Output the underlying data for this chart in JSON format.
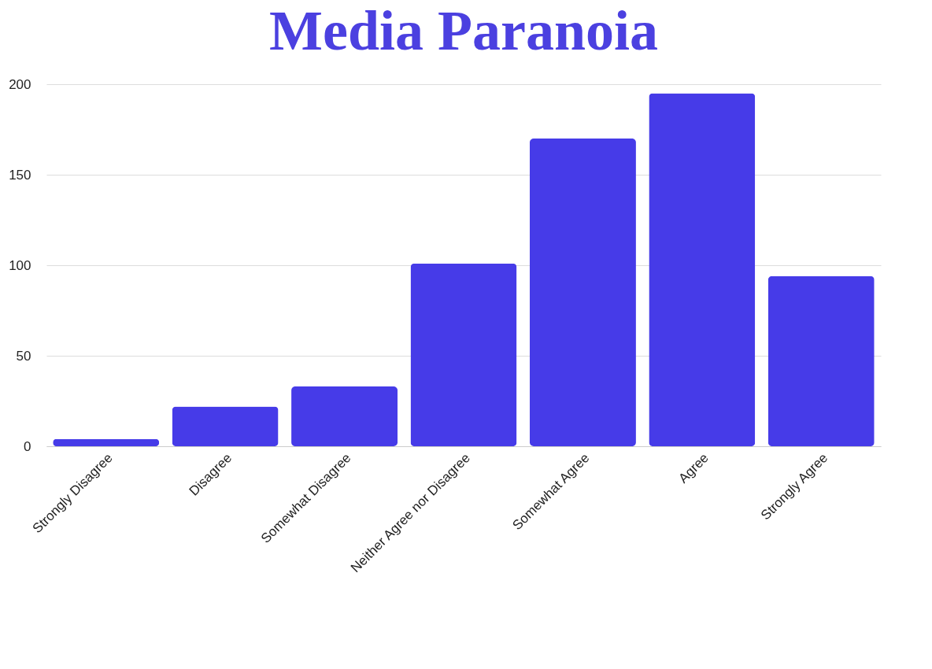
{
  "chart_data": {
    "type": "bar",
    "title": "Media Paranoia",
    "categories": [
      "Strongly Disagree",
      "Disagree",
      "Somewhat Disagree",
      "Neither Agree nor Disagree",
      "Somewhat Agree",
      "Agree",
      "Strongly Agree"
    ],
    "values": [
      4,
      22,
      33,
      101,
      170,
      195,
      94
    ],
    "color": "#463be8",
    "ylim": [
      0,
      200
    ],
    "yticks": [
      0,
      50,
      100,
      150,
      200
    ],
    "grid": "y"
  }
}
